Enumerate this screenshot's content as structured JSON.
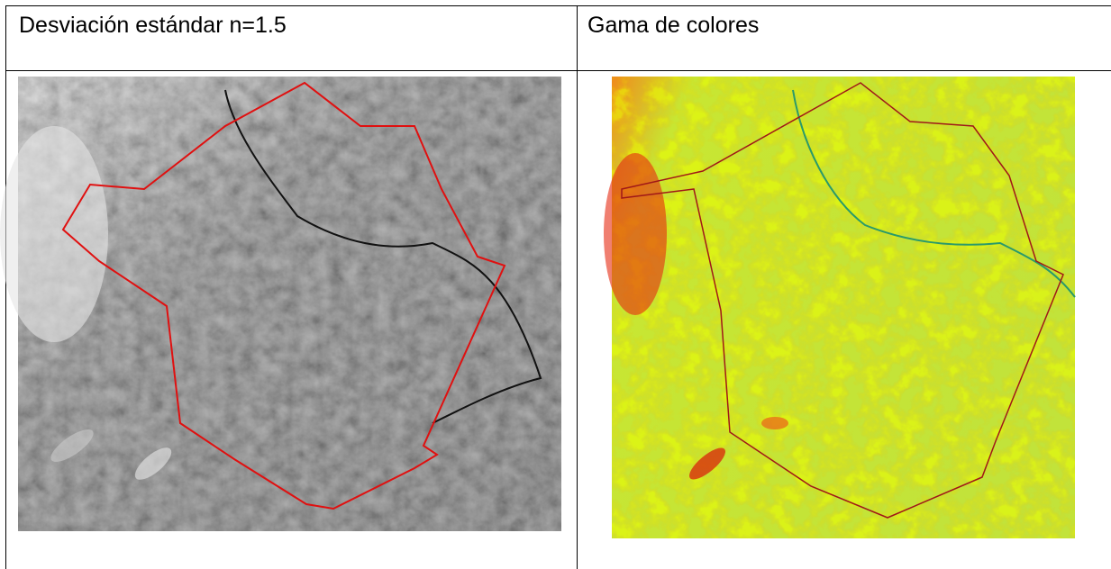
{
  "table": {
    "rows": [
      [
        "Desviación estándar n=1.5",
        "Gama de colores"
      ]
    ]
  }
}
